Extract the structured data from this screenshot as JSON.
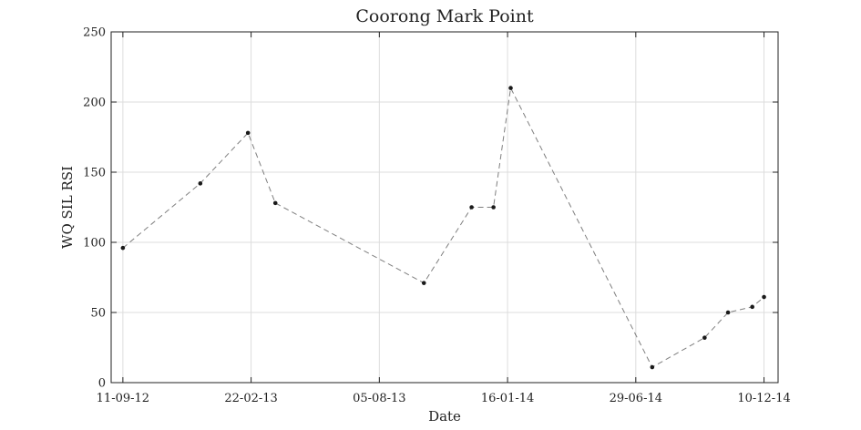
{
  "chart_data": {
    "type": "line",
    "title": "Coorong Mark Point",
    "xlabel": "Date",
    "ylabel": "WQ SIL RSI",
    "x_tick_labels": [
      "11-09-12",
      "22-02-13",
      "05-08-13",
      "16-01-14",
      "29-06-14",
      "10-12-14"
    ],
    "x_tick_dates": [
      "2012-09-11",
      "2013-02-22",
      "2013-08-05",
      "2014-01-16",
      "2014-06-29",
      "2014-12-10"
    ],
    "xlim": [
      "2012-08-27",
      "2014-12-28"
    ],
    "ylim": [
      0,
      250
    ],
    "y_ticks": [
      0,
      50,
      100,
      150,
      200,
      250
    ],
    "grid": true,
    "series": [
      {
        "points": [
          {
            "x": "2012-09-11",
            "y": 96
          },
          {
            "x": "2012-12-19",
            "y": 142
          },
          {
            "x": "2013-02-18",
            "y": 178
          },
          {
            "x": "2013-03-25",
            "y": 128
          },
          {
            "x": "2013-10-01",
            "y": 71
          },
          {
            "x": "2013-12-01",
            "y": 125
          },
          {
            "x": "2013-12-29",
            "y": 125
          },
          {
            "x": "2014-01-20",
            "y": 210
          },
          {
            "x": "2014-07-20",
            "y": 11
          },
          {
            "x": "2014-09-25",
            "y": 32
          },
          {
            "x": "2014-10-25",
            "y": 50
          },
          {
            "x": "2014-11-25",
            "y": 54
          },
          {
            "x": "2014-12-10",
            "y": 61
          }
        ],
        "color": "#7f7f7f",
        "marker_color": "#1a1a1a"
      }
    ]
  }
}
